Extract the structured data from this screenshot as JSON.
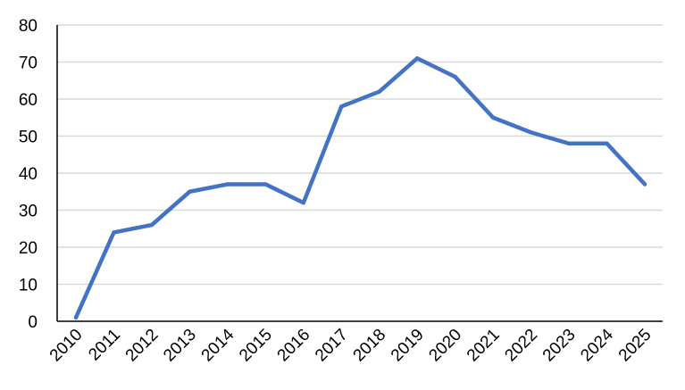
{
  "chart_data": {
    "type": "line",
    "title": "",
    "xlabel": "",
    "ylabel": "",
    "categories": [
      "2010",
      "2011",
      "2012",
      "2013",
      "2014",
      "2015",
      "2016",
      "2017",
      "2018",
      "2019",
      "2020",
      "2021",
      "2022",
      "2023",
      "2024",
      "2025"
    ],
    "series": [
      {
        "values": [
          1,
          24,
          26,
          35,
          37,
          37,
          32,
          58,
          62,
          71,
          66,
          55,
          51,
          48,
          48,
          37
        ]
      }
    ],
    "ylim": [
      0,
      80
    ],
    "yticks": [
      0,
      10,
      20,
      30,
      40,
      50,
      60,
      70,
      80
    ],
    "grid": true,
    "legend": "none",
    "colors": {
      "line": "#4472C4",
      "grid": "#D9D9D9",
      "axis": "#000000"
    }
  }
}
